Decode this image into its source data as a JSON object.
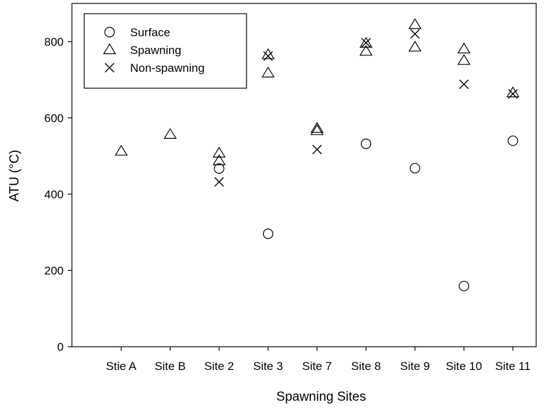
{
  "chart_data": {
    "type": "scatter",
    "title": "",
    "xlabel": "Spawning Sites",
    "ylabel": "ATU (°C)",
    "categories": [
      "Stie A",
      "Site B",
      "Site 2",
      "Site 3",
      "Site 7",
      "Site 8",
      "Site 9",
      "Site 10",
      "Site 11"
    ],
    "ylim": [
      0,
      900
    ],
    "yticks": [
      0,
      200,
      400,
      600,
      800
    ],
    "grid": false,
    "legend_position": "top-left",
    "series": [
      {
        "name": "Surface",
        "marker": "circle",
        "points": [
          {
            "category": "Site 2",
            "y": 467
          },
          {
            "category": "Site 3",
            "y": 296
          },
          {
            "category": "Site 8",
            "y": 532
          },
          {
            "category": "Site 9",
            "y": 468
          },
          {
            "category": "Site 10",
            "y": 159
          },
          {
            "category": "Site 11",
            "y": 540
          }
        ]
      },
      {
        "name": "Spawning",
        "marker": "triangle",
        "points": [
          {
            "category": "Stie A",
            "y": 512
          },
          {
            "category": "Site B",
            "y": 556
          },
          {
            "category": "Site 2",
            "y": 507
          },
          {
            "category": "Site 2",
            "y": 487
          },
          {
            "category": "Site 3",
            "y": 765
          },
          {
            "category": "Site 3",
            "y": 717
          },
          {
            "category": "Site 7",
            "y": 572
          },
          {
            "category": "Site 7",
            "y": 566
          },
          {
            "category": "Site 8",
            "y": 795
          },
          {
            "category": "Site 8",
            "y": 774
          },
          {
            "category": "Site 9",
            "y": 844
          },
          {
            "category": "Site 9",
            "y": 785
          },
          {
            "category": "Site 10",
            "y": 780
          },
          {
            "category": "Site 10",
            "y": 750
          },
          {
            "category": "Site 11",
            "y": 665
          }
        ]
      },
      {
        "name": "Non-spawning",
        "marker": "x",
        "points": [
          {
            "category": "Site 2",
            "y": 432
          },
          {
            "category": "Site 3",
            "y": 762
          },
          {
            "category": "Site 7",
            "y": 517
          },
          {
            "category": "Site 8",
            "y": 797
          },
          {
            "category": "Site 9",
            "y": 820
          },
          {
            "category": "Site 10",
            "y": 688
          },
          {
            "category": "Site 11",
            "y": 663
          }
        ]
      }
    ]
  }
}
